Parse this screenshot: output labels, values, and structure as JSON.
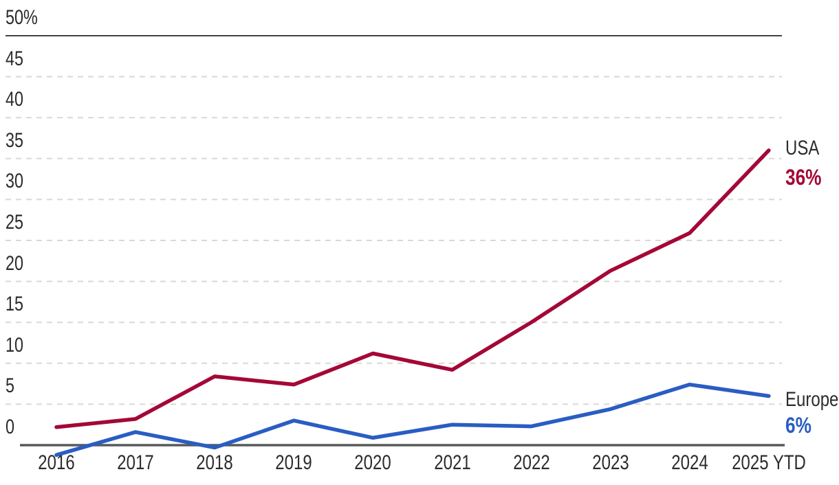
{
  "chart_data": {
    "type": "line",
    "title": "",
    "xlabel": "",
    "ylabel": "",
    "categories": [
      "2016",
      "2017",
      "2018",
      "2019",
      "2020",
      "2021",
      "2022",
      "2023",
      "2024",
      "2025 YTD"
    ],
    "series": [
      {
        "name": "USA",
        "end_label": "36%",
        "color": "#a40837",
        "values": [
          2.2,
          3.2,
          8.4,
          7.4,
          11.2,
          9.2,
          15.0,
          21.3,
          25.9,
          36
        ]
      },
      {
        "name": "Europe",
        "end_label": "6%",
        "color": "#2a5dc3",
        "values": [
          -1.2,
          1.6,
          -0.3,
          3.0,
          0.9,
          2.5,
          2.3,
          4.4,
          7.4,
          6
        ]
      }
    ],
    "y_ticks": [
      {
        "label": "50%",
        "value": 50,
        "style": "solid"
      },
      {
        "label": "45",
        "value": 45,
        "style": "dashed"
      },
      {
        "label": "40",
        "value": 40,
        "style": "dashed"
      },
      {
        "label": "35",
        "value": 35,
        "style": "dashed"
      },
      {
        "label": "30",
        "value": 30,
        "style": "dashed"
      },
      {
        "label": "25",
        "value": 25,
        "style": "dashed"
      },
      {
        "label": "20",
        "value": 20,
        "style": "dashed"
      },
      {
        "label": "15",
        "value": 15,
        "style": "dashed"
      },
      {
        "label": "10",
        "value": 10,
        "style": "dashed"
      },
      {
        "label": "5",
        "value": 5,
        "style": "dashed"
      },
      {
        "label": "0",
        "value": 0,
        "style": "axis"
      }
    ],
    "ylim": [
      -2,
      50
    ],
    "grid": "horizontal",
    "legend_position": "line-end-labels-right"
  },
  "colors": {
    "grid_dashed": "#d8d8d8",
    "grid_solid": "#414143",
    "axis_line": "#58595b",
    "tick_text": "#2c2c2e",
    "usa_line": "#a40837",
    "europe_line": "#2a5dc3",
    "background": "#ffffff"
  }
}
